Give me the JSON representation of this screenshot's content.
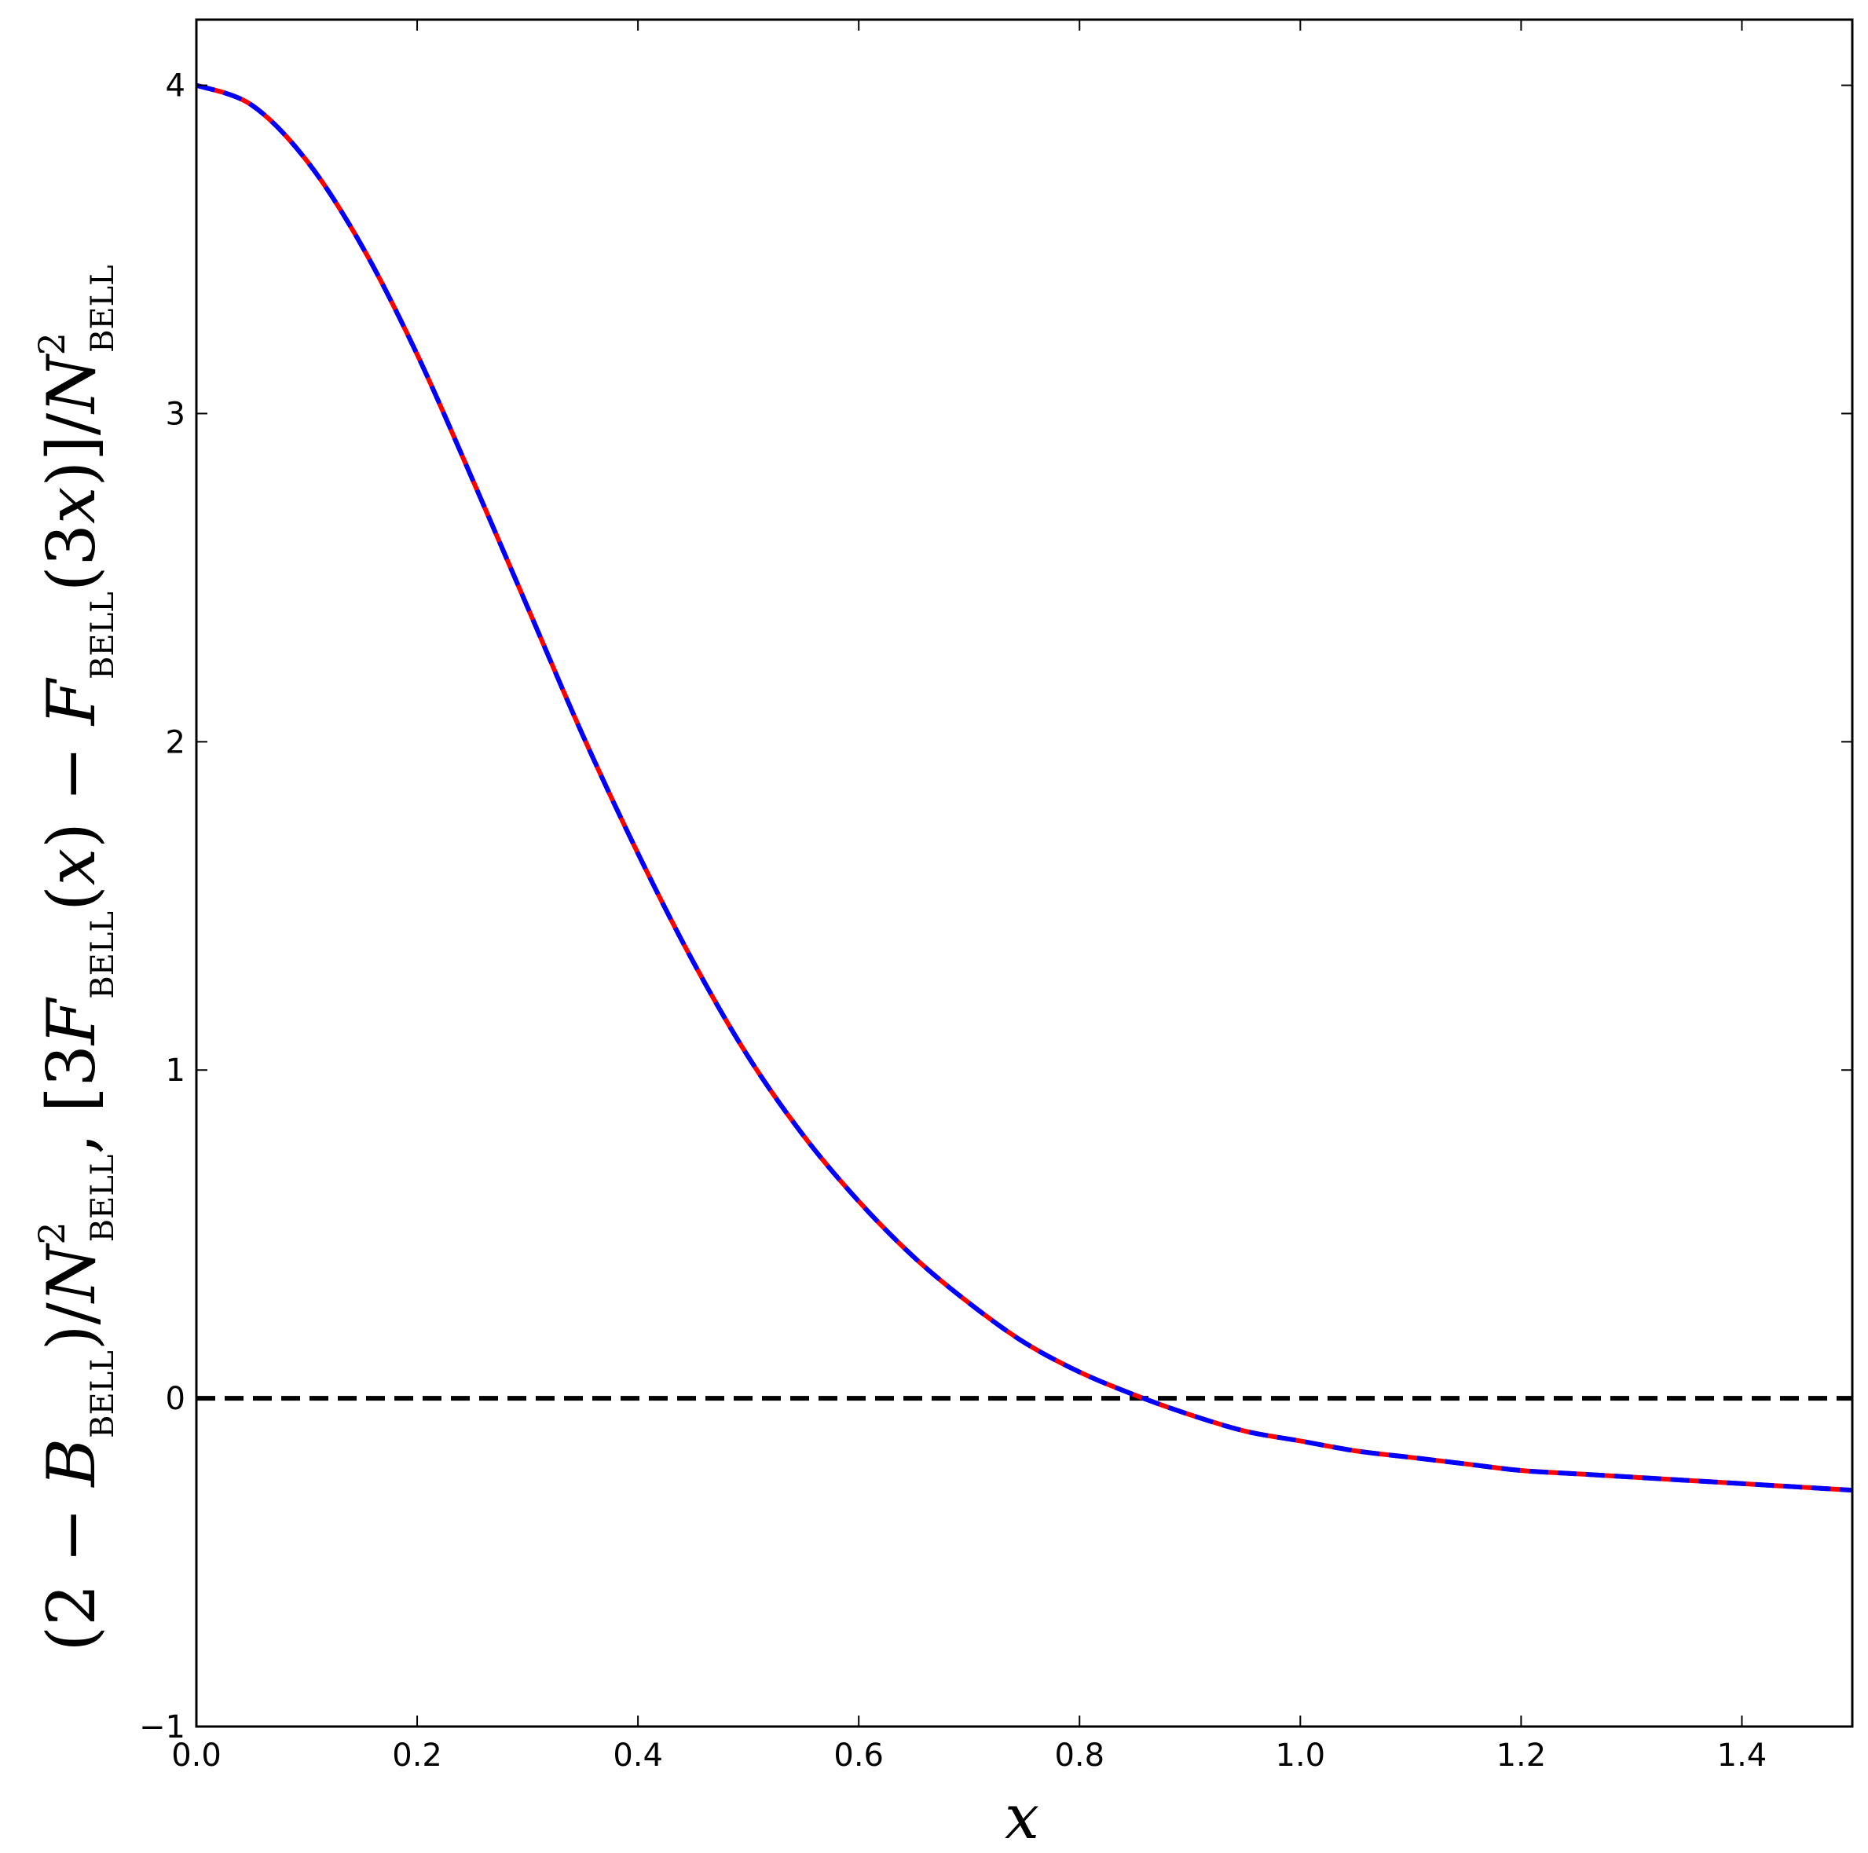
{
  "chart_data": {
    "type": "line",
    "xlabel": "x",
    "ylabel": "(2 − B_BELL)/N²_BELL,   [3F_BELL(x) − F_BELL(3x)]/N²_BELL",
    "xlim": [
      0.0,
      1.5
    ],
    "ylim": [
      -1,
      4.2
    ],
    "xticks": [
      "0.0",
      "0.2",
      "0.4",
      "0.6",
      "0.8",
      "1.0",
      "1.2",
      "1.4"
    ],
    "yticks": [
      "−1",
      "0",
      "1",
      "2",
      "3",
      "4"
    ],
    "grid": false,
    "series": [
      {
        "color": "#ff0000",
        "style": "solid",
        "x": [
          0.0,
          0.05,
          0.1,
          0.15,
          0.2,
          0.25,
          0.3,
          0.35,
          0.4,
          0.45,
          0.5,
          0.55,
          0.6,
          0.65,
          0.7,
          0.75,
          0.8,
          0.85,
          0.9,
          0.95,
          1.0,
          1.05,
          1.1,
          1.15,
          1.2,
          1.25,
          1.3,
          1.35,
          1.4,
          1.45,
          1.5
        ],
        "y": [
          4.0,
          3.94,
          3.77,
          3.51,
          3.18,
          2.8,
          2.41,
          2.02,
          1.66,
          1.33,
          1.04,
          0.8,
          0.6,
          0.43,
          0.29,
          0.17,
          0.08,
          0.01,
          -0.05,
          -0.1,
          -0.13,
          -0.16,
          -0.18,
          -0.2,
          -0.22,
          -0.23,
          -0.24,
          -0.25,
          -0.26,
          -0.27,
          -0.28
        ]
      },
      {
        "color": "#0000ff",
        "style": "dashed",
        "x": [
          0.0,
          0.05,
          0.1,
          0.15,
          0.2,
          0.25,
          0.3,
          0.35,
          0.4,
          0.45,
          0.5,
          0.55,
          0.6,
          0.65,
          0.7,
          0.75,
          0.8,
          0.85,
          0.9,
          0.95,
          1.0,
          1.05,
          1.1,
          1.15,
          1.2,
          1.25,
          1.3,
          1.35,
          1.4,
          1.45,
          1.5
        ],
        "y": [
          4.0,
          3.94,
          3.77,
          3.51,
          3.18,
          2.8,
          2.41,
          2.02,
          1.66,
          1.33,
          1.04,
          0.8,
          0.6,
          0.43,
          0.29,
          0.17,
          0.08,
          0.01,
          -0.05,
          -0.1,
          -0.13,
          -0.16,
          -0.18,
          -0.2,
          -0.22,
          -0.23,
          -0.24,
          -0.25,
          -0.26,
          -0.27,
          -0.28
        ]
      }
    ],
    "reference_lines": [
      {
        "orientation": "horizontal",
        "y": 0,
        "color": "#000000",
        "style": "dashed"
      }
    ]
  }
}
